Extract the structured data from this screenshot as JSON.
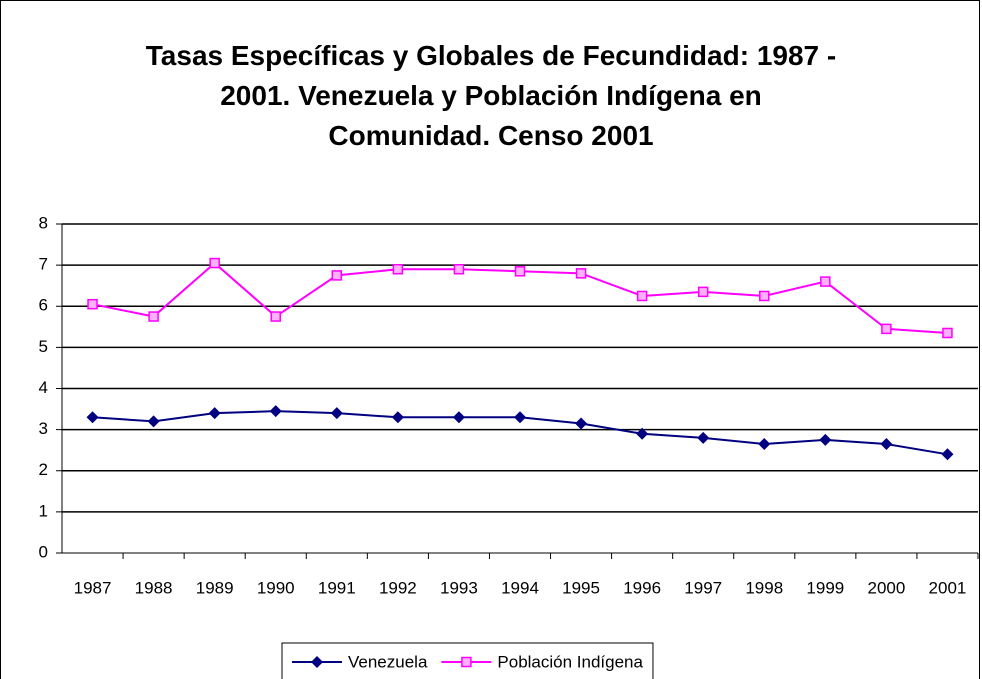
{
  "chart_data": {
    "type": "line",
    "title": "Tasas Específicas y Globales de Fecundidad: 1987 - 2001. Venezuela y Población Indígena en Comunidad. Censo 2001",
    "categories": [
      "1987",
      "1988",
      "1989",
      "1990",
      "1991",
      "1992",
      "1993",
      "1994",
      "1995",
      "1996",
      "1997",
      "1998",
      "1999",
      "2000",
      "2001"
    ],
    "series": [
      {
        "name": "Venezuela",
        "color": "#000080",
        "marker": "diamond",
        "values": [
          3.3,
          3.2,
          3.4,
          3.45,
          3.4,
          3.3,
          3.3,
          3.3,
          3.15,
          2.9,
          2.8,
          2.65,
          2.75,
          2.65,
          2.4
        ]
      },
      {
        "name": "Población Indígena",
        "color": "#ff00ff",
        "marker": "square",
        "values": [
          6.05,
          5.75,
          7.05,
          5.75,
          6.75,
          6.9,
          6.9,
          6.85,
          6.8,
          6.25,
          6.35,
          6.25,
          6.6,
          5.45,
          5.35
        ]
      }
    ],
    "ylim": [
      0,
      8
    ],
    "yticks": [
      0,
      1,
      2,
      3,
      4,
      5,
      6,
      7,
      8
    ],
    "grid": true,
    "legend": "bottom"
  }
}
